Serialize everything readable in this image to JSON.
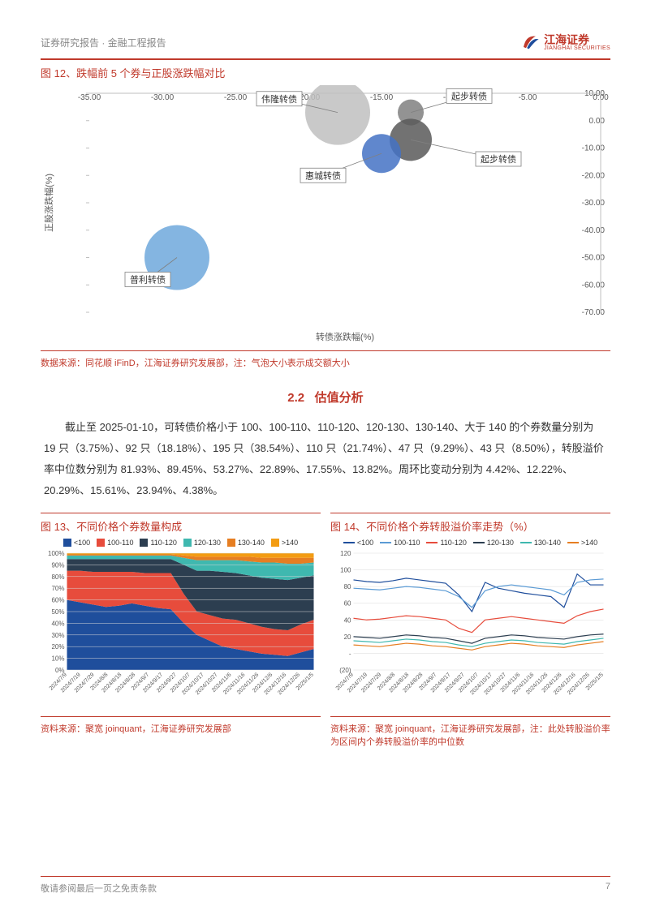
{
  "header": {
    "left": "证券研究报告 · 金融工程报告",
    "logo_cn": "江海证券",
    "logo_en": "JIANGHAI SECURITIES",
    "logo_red": "#c0392b",
    "logo_blue": "#1f4e9c"
  },
  "fig12": {
    "title_prefix": "图 12、",
    "title": "跌幅前 5 个券与正股涨跌幅对比",
    "xlabel": "转债涨跌幅(%)",
    "ylabel": "正股涨跌幅(%)",
    "xlim": [
      -35,
      0
    ],
    "ylim": [
      -70,
      10
    ],
    "xtick_step": 5,
    "ytick_step": 10,
    "xticks": [
      "-35.00",
      "-30.00",
      "-25.00",
      "-20.00",
      "-15.00",
      "-10.00",
      "-5.00",
      "0.00"
    ],
    "yticks": [
      "-70.00",
      "-60.00",
      "-50.00",
      "-40.00",
      "-30.00",
      "-20.00",
      "-10.00",
      "0.00",
      "10.00"
    ],
    "tick_fontsize": 10,
    "label_fontsize": 11,
    "axis_color": "#bfbfbf",
    "tick_color": "#595959",
    "label_color": "#595959",
    "callout_border": "#808080",
    "callout_bg": "#ffffff",
    "bubbles": [
      {
        "name": "伟隆转债",
        "x": -18,
        "y": 3,
        "r": 40,
        "fill": "#bfbfbf",
        "lx": -22,
        "ly": 8
      },
      {
        "name": "起步转债",
        "x": -13,
        "y": 3,
        "r": 16,
        "fill": "#808080",
        "lx": -9,
        "ly": 9
      },
      {
        "name": "起步转债",
        "x": -13,
        "y": -7,
        "r": 26,
        "fill": "#595959",
        "lx": -7,
        "ly": -14
      },
      {
        "name": "惠城转债",
        "x": -15,
        "y": -12,
        "r": 24,
        "fill": "#4472c4",
        "lx": -19,
        "ly": -20
      },
      {
        "name": "普利转债",
        "x": -29,
        "y": -50,
        "r": 40,
        "fill": "#6fa8dc",
        "lx": -31,
        "ly": -58
      }
    ],
    "source": "数据来源：同花顺 iFinD，江海证券研究发展部，注：气泡大小表示成交额大小"
  },
  "section": {
    "num": "2.2",
    "name": "估值分析"
  },
  "para": "截止至 2025-01-10，可转债价格小于 100、100-110、110-120、120-130、130-140、大于 140 的个券数量分别为 19 只（3.75%）、92 只（18.18%）、195 只（38.54%）、110 只（21.74%）、47 只（9.29%）、43 只（8.50%），转股溢价率中位数分别为 81.93%、89.45%、53.27%、22.89%、17.55%、13.82%。周环比变动分别为 4.42%、12.22%、20.29%、15.61%、23.94%、4.38%。",
  "fig13": {
    "title_prefix": "图 13、",
    "title": "不同价格个券数量构成",
    "legend": [
      "<100",
      "100-110",
      "110-120",
      "120-130",
      "130-140",
      ">140"
    ],
    "colors": [
      "#1f4e9c",
      "#e74c3c",
      "#2c3e50",
      "#3fb8af",
      "#e67e22",
      "#f39c12"
    ],
    "ylim": [
      0,
      100
    ],
    "yticks": [
      "0%",
      "10%",
      "20%",
      "30%",
      "40%",
      "50%",
      "60%",
      "70%",
      "80%",
      "90%",
      "100%"
    ],
    "xticks": [
      "2024/7/9",
      "2024/7/19",
      "2024/7/29",
      "2024/8/8",
      "2024/8/18",
      "2024/8/28",
      "2024/9/7",
      "2024/9/17",
      "2024/9/27",
      "2024/10/7",
      "2024/10/17",
      "2024/10/27",
      "2024/11/6",
      "2024/11/16",
      "2024/11/26",
      "2024/12/6",
      "2024/12/16",
      "2024/12/26",
      "2025/1/5"
    ],
    "grid_color": "#d9d9d9",
    "series": {
      "a": [
        60,
        58,
        56,
        54,
        55,
        57,
        55,
        53,
        52,
        40,
        30,
        25,
        20,
        18,
        16,
        14,
        13,
        12,
        15,
        18
      ],
      "b": [
        25,
        27,
        28,
        30,
        29,
        27,
        28,
        30,
        31,
        25,
        20,
        22,
        24,
        25,
        24,
        23,
        22,
        22,
        24,
        25
      ],
      "c": [
        10,
        10,
        11,
        11,
        11,
        11,
        12,
        12,
        12,
        25,
        35,
        38,
        40,
        40,
        41,
        42,
        43,
        43,
        40,
        38
      ],
      "d": [
        3,
        3,
        3,
        3,
        3,
        3,
        3,
        3,
        3,
        6,
        9,
        9,
        10,
        11,
        12,
        13,
        14,
        14,
        12,
        11
      ],
      "e": [
        1,
        1,
        1,
        1,
        1,
        1,
        1,
        1,
        1,
        2,
        3,
        3,
        3,
        3,
        4,
        4,
        4,
        5,
        5,
        4
      ],
      "f": [
        1,
        1,
        1,
        1,
        1,
        1,
        1,
        1,
        1,
        2,
        3,
        3,
        3,
        3,
        3,
        4,
        4,
        4,
        4,
        4
      ]
    },
    "source": "资料来源：聚宽 joinquant，江海证券研究发展部"
  },
  "fig14": {
    "title_prefix": "图 14、",
    "title": "不同价格个券转股溢价率走势（%）",
    "legend": [
      "<100",
      "100-110",
      "110-120",
      "120-130",
      "130-140",
      ">140"
    ],
    "colors": [
      "#1f4e9c",
      "#5b9bd5",
      "#e74c3c",
      "#2c3e50",
      "#3fb8af",
      "#e67e22"
    ],
    "ylim": [
      -20,
      120
    ],
    "yticks": [
      "(20)",
      "-",
      "20",
      "40",
      "60",
      "80",
      "100",
      "120"
    ],
    "xticks": [
      "2024/7/9",
      "2024/7/19",
      "2024/7/29",
      "2024/8/8",
      "2024/8/18",
      "2024/8/28",
      "2024/9/7",
      "2024/9/17",
      "2024/9/27",
      "2024/10/7",
      "2024/10/17",
      "2024/10/27",
      "2024/11/6",
      "2024/11/16",
      "2024/11/26",
      "2024/12/6",
      "2024/12/16",
      "2024/12/26",
      "2025/1/5"
    ],
    "grid_color": "#d9d9d9",
    "series": {
      "s1": [
        88,
        86,
        85,
        87,
        90,
        88,
        86,
        84,
        70,
        50,
        85,
        78,
        75,
        72,
        70,
        68,
        55,
        95,
        82,
        82
      ],
      "s2": [
        78,
        77,
        76,
        78,
        80,
        79,
        77,
        75,
        68,
        55,
        75,
        80,
        82,
        80,
        78,
        76,
        70,
        85,
        88,
        89
      ],
      "s3": [
        42,
        40,
        41,
        43,
        45,
        44,
        42,
        40,
        30,
        25,
        40,
        42,
        44,
        42,
        40,
        38,
        36,
        45,
        50,
        53
      ],
      "s4": [
        20,
        19,
        18,
        20,
        22,
        21,
        19,
        18,
        15,
        12,
        18,
        20,
        22,
        21,
        19,
        18,
        17,
        20,
        22,
        23
      ],
      "s5": [
        15,
        14,
        13,
        15,
        17,
        16,
        14,
        13,
        10,
        8,
        12,
        14,
        16,
        15,
        13,
        12,
        11,
        14,
        16,
        18
      ],
      "s6": [
        10,
        9,
        8,
        10,
        12,
        11,
        9,
        8,
        6,
        4,
        8,
        10,
        12,
        11,
        9,
        8,
        7,
        10,
        12,
        14
      ]
    },
    "source": "资料来源：聚宽 joinquant，江海证券研究发展部，注：此处转股溢价率为区间内个券转股溢价率的中位数"
  },
  "footer": {
    "left": "敬请参阅最后一页之免责条款",
    "page": "7"
  }
}
